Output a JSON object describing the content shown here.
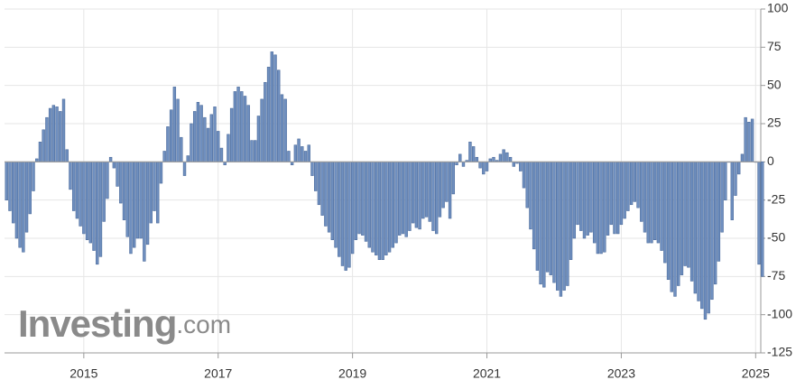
{
  "chart_data": {
    "type": "bar",
    "color": "#6f8fbf",
    "grid": true,
    "watermark": {
      "brand": "Investing",
      "suffix": ".com"
    },
    "xlim": [
      2013.82,
      2025.13
    ],
    "xticks": [
      2015,
      2017,
      2019,
      2021,
      2023,
      2025
    ],
    "ylim": [
      -125,
      100
    ],
    "yticks": [
      100,
      75,
      50,
      25,
      0,
      -25,
      -50,
      -75,
      -100,
      -125
    ],
    "x": [
      2013.85,
      2013.9,
      2013.95,
      2014,
      2014.05,
      2014.1,
      2014.15,
      2014.2,
      2014.25,
      2014.3,
      2014.35,
      2014.4,
      2014.45,
      2014.5,
      2014.55,
      2014.6,
      2014.65,
      2014.7,
      2014.75,
      2014.8,
      2014.85,
      2014.9,
      2014.95,
      2015,
      2015.05,
      2015.1,
      2015.15,
      2015.2,
      2015.25,
      2015.3,
      2015.35,
      2015.4,
      2015.45,
      2015.5,
      2015.55,
      2015.6,
      2015.65,
      2015.7,
      2015.75,
      2015.8,
      2015.85,
      2015.9,
      2015.95,
      2016,
      2016.05,
      2016.1,
      2016.15,
      2016.2,
      2016.25,
      2016.3,
      2016.35,
      2016.4,
      2016.45,
      2016.5,
      2016.55,
      2016.6,
      2016.65,
      2016.7,
      2016.75,
      2016.8,
      2016.85,
      2016.9,
      2016.95,
      2017,
      2017.05,
      2017.1,
      2017.15,
      2017.2,
      2017.25,
      2017.3,
      2017.35,
      2017.4,
      2017.45,
      2017.5,
      2017.55,
      2017.6,
      2017.65,
      2017.7,
      2017.75,
      2017.8,
      2017.85,
      2017.9,
      2017.95,
      2018,
      2018.05,
      2018.1,
      2018.15,
      2018.2,
      2018.25,
      2018.3,
      2018.35,
      2018.4,
      2018.45,
      2018.5,
      2018.55,
      2018.6,
      2018.65,
      2018.7,
      2018.75,
      2018.8,
      2018.85,
      2018.9,
      2018.95,
      2019,
      2019.05,
      2019.1,
      2019.15,
      2019.2,
      2019.25,
      2019.3,
      2019.35,
      2019.4,
      2019.45,
      2019.5,
      2019.55,
      2019.6,
      2019.65,
      2019.7,
      2019.75,
      2019.8,
      2019.85,
      2019.9,
      2019.95,
      2020,
      2020.05,
      2020.1,
      2020.15,
      2020.2,
      2020.25,
      2020.3,
      2020.35,
      2020.4,
      2020.45,
      2020.5,
      2020.55,
      2020.6,
      2020.65,
      2020.7,
      2020.75,
      2020.8,
      2020.85,
      2020.9,
      2020.95,
      2021,
      2021.05,
      2021.1,
      2021.15,
      2021.2,
      2021.25,
      2021.3,
      2021.35,
      2021.4,
      2021.45,
      2021.5,
      2021.55,
      2021.6,
      2021.65,
      2021.7,
      2021.75,
      2021.8,
      2021.85,
      2021.9,
      2021.95,
      2022,
      2022.05,
      2022.1,
      2022.15,
      2022.2,
      2022.25,
      2022.3,
      2022.35,
      2022.4,
      2022.45,
      2022.5,
      2022.55,
      2022.6,
      2022.65,
      2022.7,
      2022.75,
      2022.8,
      2022.85,
      2022.9,
      2022.95,
      2023,
      2023.05,
      2023.1,
      2023.15,
      2023.2,
      2023.25,
      2023.3,
      2023.35,
      2023.4,
      2023.45,
      2023.5,
      2023.55,
      2023.6,
      2023.65,
      2023.7,
      2023.75,
      2023.8,
      2023.85,
      2023.9,
      2023.95,
      2024,
      2024.05,
      2024.1,
      2024.15,
      2024.2,
      2024.25,
      2024.3,
      2024.35,
      2024.4,
      2024.45,
      2024.5,
      2024.55,
      2024.6,
      2024.65,
      2024.7,
      2024.75,
      2024.8,
      2024.85,
      2024.9,
      2024.95,
      2025,
      2025.05,
      2025.1
    ],
    "values": [
      -25,
      -32,
      -40,
      -50,
      -56,
      -59,
      -46,
      -34,
      -19,
      2,
      13,
      21,
      29,
      35,
      37,
      36,
      33,
      41,
      8,
      -18,
      -32,
      -37,
      -42,
      -47,
      -51,
      -53,
      -58,
      -67,
      -62,
      -39,
      -24,
      3,
      -4,
      -16,
      -27,
      -38,
      -49,
      -60,
      -56,
      -50,
      -50,
      -65,
      -54,
      -40,
      -32,
      -40,
      -14,
      7,
      23,
      34,
      49,
      41,
      16,
      -9,
      4,
      25,
      33,
      39,
      37,
      29,
      22,
      31,
      36,
      20,
      9,
      -2,
      18,
      35,
      46,
      49,
      46,
      43,
      37,
      14,
      14,
      30,
      41,
      52,
      62,
      72,
      70,
      60,
      44,
      41,
      7,
      -2,
      11,
      15,
      10,
      7,
      11,
      -9,
      -19,
      -28,
      -35,
      -42,
      -46,
      -51,
      -56,
      -62,
      -68,
      -71,
      -69,
      -60,
      -51,
      -47,
      -48,
      -52,
      -56,
      -59,
      -61,
      -64,
      -64,
      -61,
      -59,
      -56,
      -53,
      -48,
      -47,
      -49,
      -45,
      -40,
      -43,
      -44,
      -37,
      -36,
      -39,
      -45,
      -47,
      -36,
      -30,
      -26,
      -37,
      -21,
      -2,
      5,
      -3,
      1,
      13,
      10,
      3,
      -4,
      -8,
      -6,
      2,
      3,
      1,
      5,
      8,
      6,
      3,
      -3,
      -1,
      -6,
      -17,
      -30,
      -44,
      -57,
      -71,
      -80,
      -82,
      -72,
      -74,
      -79,
      -84,
      -88,
      -84,
      -81,
      -64,
      -50,
      -41,
      -45,
      -50,
      -48,
      -46,
      -53,
      -60,
      -60,
      -59,
      -48,
      -41,
      -47,
      -47,
      -41,
      -37,
      -32,
      -28,
      -26,
      -30,
      -39,
      -46,
      -53,
      -53,
      -51,
      -53,
      -58,
      -66,
      -77,
      -85,
      -88,
      -81,
      -74,
      -68,
      -69,
      -78,
      -86,
      -91,
      -96,
      -103,
      -99,
      -90,
      -80,
      -65,
      -46,
      -25,
      0,
      -38,
      -22,
      -8,
      5,
      29,
      26,
      28,
      0,
      -67,
      -75
    ]
  }
}
